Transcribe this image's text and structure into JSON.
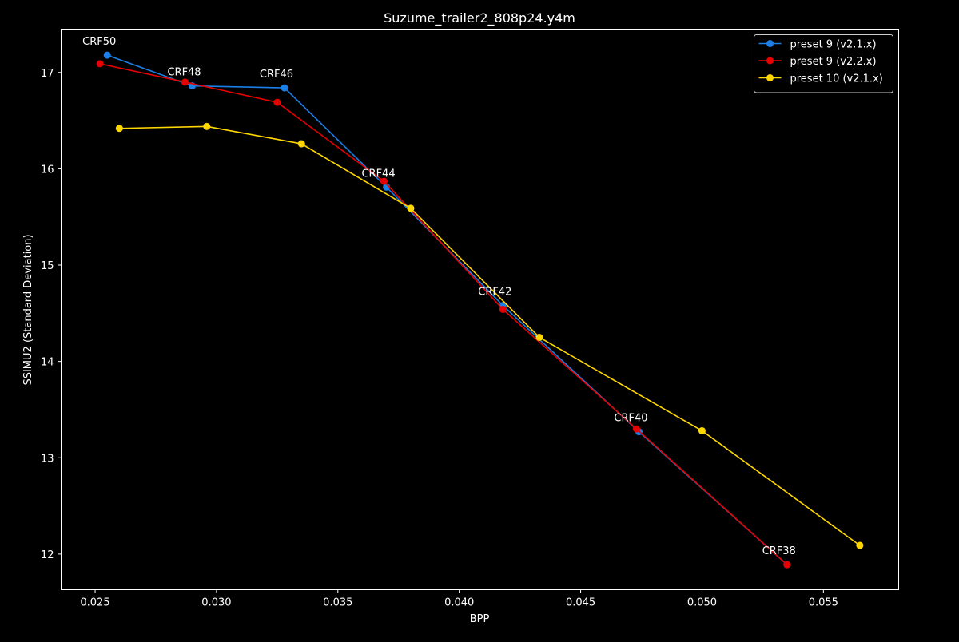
{
  "chart_data": {
    "type": "line",
    "title": "Suzume_trailer2_808p24.y4m",
    "xlabel": "BPP",
    "ylabel": "SSIMU2 (Standard Deviation)",
    "xlim": [
      0.0236,
      0.0581
    ],
    "ylim": [
      11.63,
      17.45
    ],
    "x_ticks": [
      0.025,
      0.03,
      0.035,
      0.04,
      0.045,
      0.05,
      0.055
    ],
    "x_tick_labels": [
      "0.025",
      "0.030",
      "0.035",
      "0.040",
      "0.045",
      "0.050",
      "0.055"
    ],
    "y_ticks": [
      12,
      13,
      14,
      15,
      16,
      17
    ],
    "y_tick_labels": [
      "12",
      "13",
      "14",
      "15",
      "16",
      "17"
    ],
    "grid": false,
    "legend_position": "top-right",
    "background": "#000000",
    "series": [
      {
        "name": "preset 9 (v2.1.x)",
        "color": "#1a7fe6",
        "points": [
          [
            0.0255,
            17.18
          ],
          [
            0.029,
            16.86
          ],
          [
            0.0328,
            16.84
          ],
          [
            0.037,
            15.81
          ],
          [
            0.0418,
            14.58
          ],
          [
            0.0474,
            13.27
          ],
          [
            0.0535,
            11.89
          ]
        ]
      },
      {
        "name": "preset 9 (v2.2.x)",
        "color": "#e60000",
        "points": [
          [
            0.0252,
            17.09
          ],
          [
            0.0287,
            16.9
          ],
          [
            0.0325,
            16.69
          ],
          [
            0.0369,
            15.87
          ],
          [
            0.0418,
            14.54
          ],
          [
            0.0473,
            13.3
          ],
          [
            0.0535,
            11.89
          ]
        ]
      },
      {
        "name": "preset 10 (v2.1.x)",
        "color": "#ffd700",
        "points": [
          [
            0.026,
            16.42
          ],
          [
            0.0296,
            16.44
          ],
          [
            0.0335,
            16.26
          ],
          [
            0.038,
            15.59
          ],
          [
            0.0433,
            14.25
          ],
          [
            0.05,
            13.28
          ],
          [
            0.0565,
            12.09
          ]
        ]
      }
    ],
    "annotations": [
      {
        "text": "CRF50",
        "x": 0.0255,
        "y": 17.18
      },
      {
        "text": "CRF48",
        "x": 0.029,
        "y": 16.86
      },
      {
        "text": "CRF46",
        "x": 0.0328,
        "y": 16.84
      },
      {
        "text": "CRF44",
        "x": 0.037,
        "y": 15.81
      },
      {
        "text": "CRF42",
        "x": 0.0418,
        "y": 14.58
      },
      {
        "text": "CRF40",
        "x": 0.0474,
        "y": 13.27
      },
      {
        "text": "CRF38",
        "x": 0.0535,
        "y": 11.89
      }
    ]
  }
}
